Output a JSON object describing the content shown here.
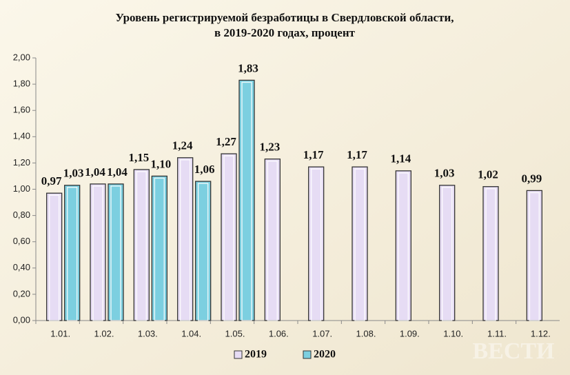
{
  "chart_data": {
    "type": "bar",
    "title": [
      "Уровень регистрируемой безработицы в Свердловской области,",
      "в 2019-2020 годах, процент"
    ],
    "categories": [
      "1.01.",
      "1.02.",
      "1.03.",
      "1.04.",
      "1.05.",
      "1.06.",
      "1.07.",
      "1.08.",
      "1.09.",
      "1.10.",
      "1.11.",
      "1.12."
    ],
    "series": [
      {
        "name": "2019",
        "color": "#e6dcf4",
        "values": [
          0.97,
          1.04,
          1.15,
          1.24,
          1.27,
          1.23,
          1.17,
          1.17,
          1.14,
          1.03,
          1.02,
          0.99
        ],
        "value_labels": [
          "0,97",
          "1,04",
          "1,15",
          "1,24",
          "1,27",
          "1,23",
          "1,17",
          "1,17",
          "1,14",
          "1,03",
          "1,02",
          "0,99"
        ]
      },
      {
        "name": "2020",
        "color": "#7ccfe0",
        "values": [
          1.03,
          1.04,
          1.1,
          1.06,
          1.83,
          null,
          null,
          null,
          null,
          null,
          null,
          null
        ],
        "value_labels": [
          "1,03",
          "1,04",
          "1,10",
          "1,06",
          "1,83",
          null,
          null,
          null,
          null,
          null,
          null,
          null
        ]
      }
    ],
    "ylim": [
      0,
      2
    ],
    "yticks": [
      {
        "value": 0,
        "label": "0,00"
      },
      {
        "value": 0.2,
        "label": "0,20"
      },
      {
        "value": 0.4,
        "label": "0,40"
      },
      {
        "value": 0.6,
        "label": "0,60"
      },
      {
        "value": 0.8,
        "label": "0,80"
      },
      {
        "value": 1,
        "label": "1,00"
      },
      {
        "value": 1.2,
        "label": "1,20"
      },
      {
        "value": 1.4,
        "label": "1,40"
      },
      {
        "value": 1.6,
        "label": "1,60"
      },
      {
        "value": 1.8,
        "label": "1,80"
      },
      {
        "value": 2,
        "label": "2,00"
      }
    ],
    "legend": "bottom",
    "watermark": "ВЕСТИ"
  }
}
